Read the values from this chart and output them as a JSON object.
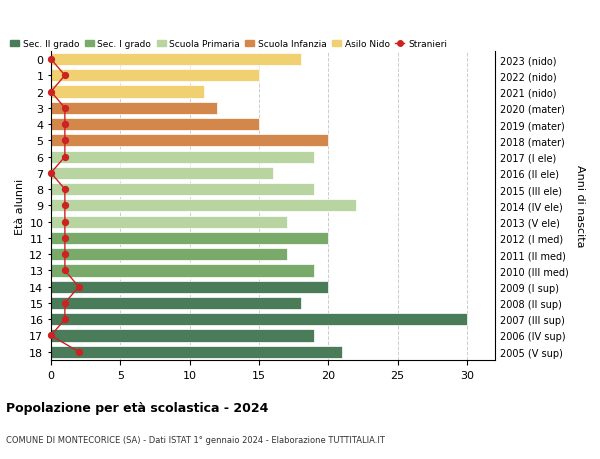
{
  "ages": [
    18,
    17,
    16,
    15,
    14,
    13,
    12,
    11,
    10,
    9,
    8,
    7,
    6,
    5,
    4,
    3,
    2,
    1,
    0
  ],
  "values": [
    21,
    19,
    30,
    18,
    20,
    19,
    17,
    20,
    17,
    22,
    19,
    16,
    19,
    20,
    15,
    12,
    11,
    15,
    18
  ],
  "stranieri": [
    2,
    0,
    1,
    1,
    2,
    1,
    1,
    1,
    1,
    1,
    1,
    0,
    1,
    1,
    1,
    1,
    0,
    1,
    0
  ],
  "right_labels": [
    "2005 (V sup)",
    "2006 (IV sup)",
    "2007 (III sup)",
    "2008 (II sup)",
    "2009 (I sup)",
    "2010 (III med)",
    "2011 (II med)",
    "2012 (I med)",
    "2013 (V ele)",
    "2014 (IV ele)",
    "2015 (III ele)",
    "2016 (II ele)",
    "2017 (I ele)",
    "2018 (mater)",
    "2019 (mater)",
    "2020 (mater)",
    "2021 (nido)",
    "2022 (nido)",
    "2023 (nido)"
  ],
  "bar_colors": [
    "#4a7c59",
    "#4a7c59",
    "#4a7c59",
    "#4a7c59",
    "#4a7c59",
    "#7aaa6a",
    "#7aaa6a",
    "#7aaa6a",
    "#b8d4a0",
    "#b8d4a0",
    "#b8d4a0",
    "#b8d4a0",
    "#b8d4a0",
    "#d4874a",
    "#d4874a",
    "#d4874a",
    "#f0d070",
    "#f0d070",
    "#f0d070"
  ],
  "legend_labels": [
    "Sec. II grado",
    "Sec. I grado",
    "Scuola Primaria",
    "Scuola Infanzia",
    "Asilo Nido",
    "Stranieri"
  ],
  "legend_colors": [
    "#4a7c59",
    "#7aaa6a",
    "#b8d4a0",
    "#d4874a",
    "#f0d070",
    "#cc2222"
  ],
  "stranieri_color": "#cc2222",
  "title": "Popolazione per età scolastica - 2024",
  "subtitle": "COMUNE DI MONTECORICE (SA) - Dati ISTAT 1° gennaio 2024 - Elaborazione TUTTITALIA.IT",
  "ylabel_left": "Età alunni",
  "ylabel_right": "Anni di nascita",
  "xlim": [
    0,
    32
  ],
  "xticks": [
    0,
    5,
    10,
    15,
    20,
    25,
    30
  ],
  "background_color": "#ffffff"
}
